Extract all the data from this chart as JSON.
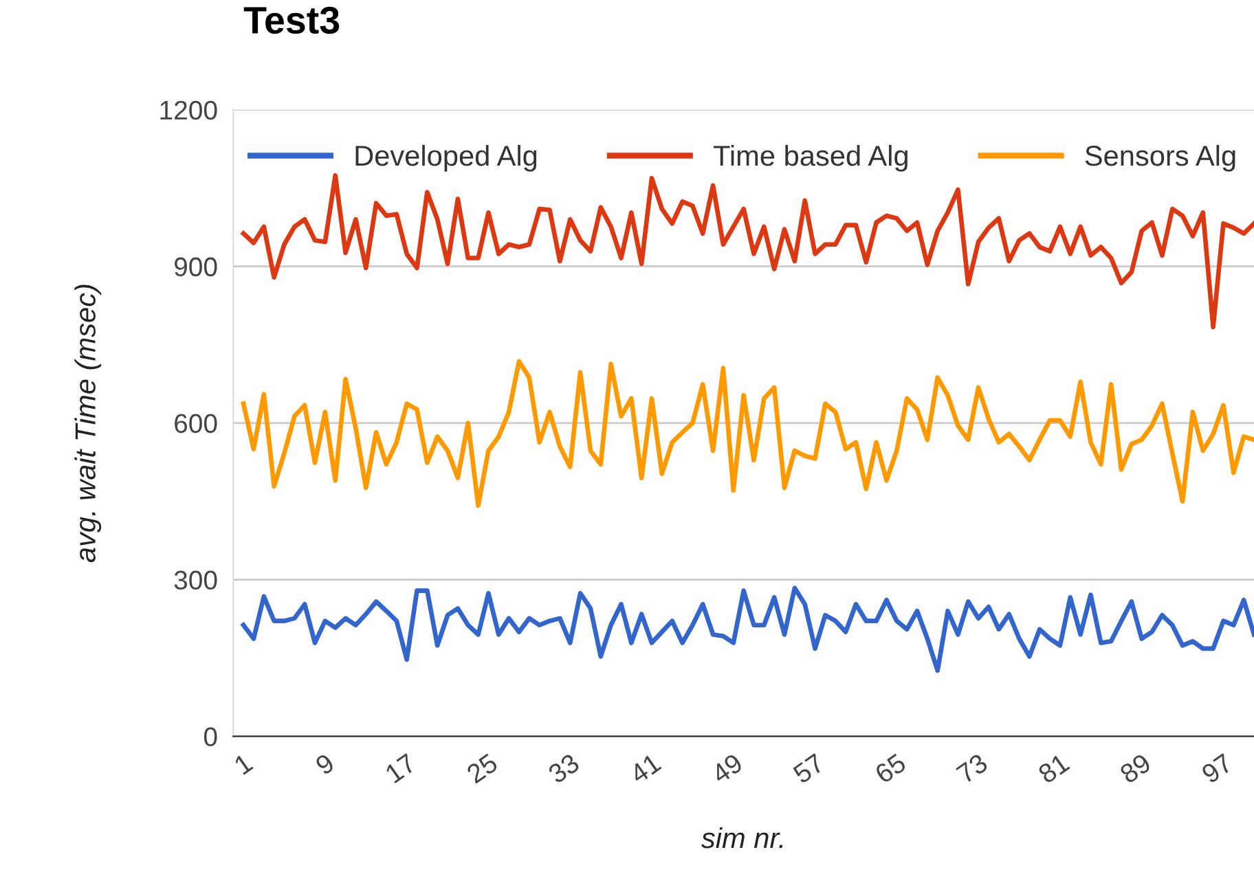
{
  "chart_data": {
    "type": "line",
    "title": "Test3",
    "xlabel": "sim nr.",
    "ylabel": "avg. wait Time (msec)",
    "categories": [
      "1",
      null,
      null,
      null,
      null,
      null,
      null,
      null,
      "9",
      null,
      null,
      null,
      null,
      null,
      null,
      null,
      "17",
      null,
      null,
      null,
      null,
      null,
      null,
      null,
      "25",
      null,
      null,
      null,
      null,
      null,
      null,
      null,
      "33",
      null,
      null,
      null,
      null,
      null,
      null,
      null,
      "41",
      null,
      null,
      null,
      null,
      null,
      null,
      null,
      "49",
      null,
      null,
      null,
      null,
      null,
      null,
      null,
      "57",
      null,
      null,
      null,
      null,
      null,
      null,
      null,
      "65",
      null,
      null,
      null,
      null,
      null,
      null,
      null,
      "73",
      null,
      null,
      null,
      null,
      null,
      null,
      null,
      "81",
      null,
      null,
      null,
      null,
      null,
      null,
      null,
      "89",
      null,
      null,
      null,
      null,
      null,
      null,
      null,
      "97",
      null,
      null,
      null
    ],
    "series": [
      {
        "name": "Developed Alg",
        "color": "#3366cc",
        "values": [
          213,
          187,
          268,
          221,
          221,
          226,
          253,
          179,
          221,
          208,
          226,
          213,
          234,
          258,
          240,
          221,
          147,
          279,
          279,
          174,
          232,
          245,
          213,
          195,
          274,
          195,
          226,
          200,
          226,
          213,
          221,
          226,
          179,
          274,
          245,
          153,
          213,
          253,
          179,
          234,
          179,
          200,
          221,
          179,
          213,
          253,
          195,
          192,
          179,
          279,
          213,
          213,
          266,
          195,
          284,
          253,
          168,
          232,
          221,
          200,
          253,
          221,
          221,
          261,
          221,
          205,
          240,
          187,
          126,
          240,
          195,
          258,
          226,
          248,
          205,
          234,
          187,
          153,
          205,
          187,
          174,
          266,
          195,
          271,
          179,
          182,
          221,
          258,
          187,
          200,
          232,
          213,
          174,
          182,
          168,
          168,
          221,
          213,
          261,
          195
        ]
      },
      {
        "name": "Time based Alg",
        "color": "#dc3912",
        "values": [
          963,
          945,
          976,
          879,
          942,
          976,
          990,
          950,
          947,
          1074,
          926,
          990,
          897,
          1021,
          997,
          1000,
          924,
          897,
          1042,
          990,
          905,
          1029,
          916,
          916,
          1003,
          924,
          942,
          937,
          942,
          1010,
          1008,
          910,
          990,
          950,
          929,
          1013,
          976,
          916,
          1003,
          905,
          1069,
          1010,
          982,
          1024,
          1016,
          963,
          1055,
          942,
          976,
          1010,
          924,
          976,
          895,
          971,
          910,
          1026,
          924,
          942,
          942,
          979,
          979,
          908,
          984,
          997,
          992,
          968,
          984,
          903,
          968,
          1003,
          1047,
          866,
          947,
          974,
          992,
          910,
          950,
          963,
          937,
          929,
          976,
          924,
          976,
          921,
          937,
          916,
          868,
          889,
          968,
          984,
          921,
          1010,
          997,
          958,
          1003,
          784,
          982,
          974,
          963,
          982
        ]
      },
      {
        "name": "Sensors Alg",
        "color": "#ff9900",
        "values": [
          637,
          550,
          655,
          479,
          542,
          613,
          634,
          524,
          621,
          490,
          684,
          590,
          476,
          582,
          521,
          563,
          637,
          626,
          524,
          574,
          547,
          495,
          600,
          442,
          547,
          574,
          621,
          718,
          687,
          563,
          621,
          555,
          516,
          697,
          547,
          521,
          713,
          613,
          647,
          495,
          647,
          503,
          563,
          582,
          600,
          674,
          547,
          705,
          471,
          653,
          529,
          647,
          668,
          476,
          547,
          537,
          532,
          637,
          621,
          550,
          563,
          474,
          563,
          490,
          547,
          647,
          626,
          568,
          687,
          653,
          595,
          568,
          668,
          608,
          563,
          579,
          555,
          529,
          568,
          605,
          605,
          574,
          679,
          563,
          521,
          674,
          511,
          560,
          568,
          595,
          637,
          542,
          450,
          621,
          547,
          579,
          634,
          505,
          574,
          568
        ]
      }
    ],
    "ylim": [
      0,
      1200
    ],
    "yticks": [
      0,
      300,
      600,
      900,
      1200
    ],
    "grid": "y",
    "legend": "top",
    "marker": "none",
    "line_style": "solid"
  }
}
